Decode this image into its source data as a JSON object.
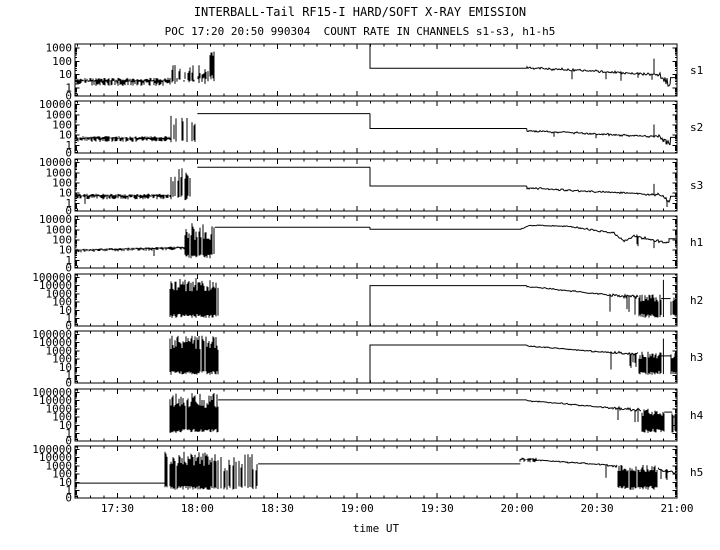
{
  "title": "INTERBALL-Tail RF15-I HARD/SOFT X-RAY EMISSION",
  "subtitle": "POC 17:20 20:50 990304  COUNT RATE IN CHANNELS s1-s3, h1-h5",
  "xlabel": "time UT",
  "colors": {
    "background": "#ffffff",
    "foreground": "#000000"
  },
  "chart_data": {
    "type": "line",
    "title": "INTERBALL-Tail RF15-I HARD/SOFT X-RAY EMISSION",
    "subtitle": "POC 17:20 20:50 990304  COUNT RATE IN CHANNELS s1-s3, h1-h5",
    "xlabel": "time UT",
    "x_axis": {
      "range_hours": [
        17.235,
        21.0
      ],
      "major_tick_hours": [
        17.5,
        18.0,
        18.5,
        19.0,
        19.5,
        20.0,
        20.5,
        21.0
      ],
      "major_tick_labels": [
        "17:30",
        "18:00",
        "18:30",
        "19:00",
        "19:30",
        "20:00",
        "20:30",
        "21:00"
      ],
      "minor_tick_minutes": 5
    },
    "y_axis": {
      "scale": "log",
      "bottom_edge_label": "0"
    },
    "panels": [
      {
        "name": "s1",
        "top_exp": 3.3,
        "bot_exp": -0.6,
        "y_tick_labels": [
          "1000",
          "100",
          "10",
          "1",
          "0"
        ],
        "segments": [
          {
            "type": "noise",
            "t0": 17.235,
            "t1": 17.83,
            "base": 3.5,
            "spread": 0.22,
            "dip_p": 0.02,
            "dip_depth": 0.8
          },
          {
            "type": "spikes",
            "t0": 17.83,
            "t1": 18.07,
            "vmin": 2,
            "vmax": 60,
            "density": 0.5,
            "hivar": 1.2
          },
          {
            "type": "spikes",
            "t0": 18.07,
            "t1": 18.12,
            "vmin": 3,
            "vmax": 2500,
            "density": 0.7,
            "hivar": 1.1
          },
          {
            "type": "flat",
            "t0": 18.12,
            "t1": 19.08,
            "v": 3200,
            "join": false
          },
          {
            "type": "flat",
            "t0": 19.08,
            "t1": 20.06,
            "v": 30
          },
          {
            "type": "ramp",
            "t0": 20.06,
            "t1": 20.88,
            "v0": 34,
            "v1": 10,
            "noise": 0.12,
            "ds_p": 0.02,
            "ds_depth": 0.7,
            "spikes_up": [
              [
                20.85,
                160
              ]
            ]
          },
          {
            "type": "ramp",
            "t0": 20.88,
            "t1": 20.96,
            "v0": 9,
            "v1": 2,
            "noise": 0.3,
            "ds_p": 0.15,
            "ds_depth": 0.6
          },
          {
            "type": "flat",
            "t0": 20.96,
            "t1": 21.0,
            "v": 6
          }
        ]
      },
      {
        "name": "s2",
        "top_exp": 4.35,
        "bot_exp": -0.75,
        "y_tick_labels": [
          "10000",
          "1000",
          "100",
          "10",
          "1",
          "0"
        ],
        "segments": [
          {
            "type": "noise",
            "t0": 17.235,
            "t1": 17.83,
            "base": 5,
            "spread": 0.2,
            "dip_p": 0.02,
            "dip_depth": 0.7
          },
          {
            "type": "spikes",
            "t0": 17.83,
            "t1": 17.99,
            "vmin": 2,
            "vmax": 1100,
            "density": 0.4,
            "hivar": 1.4
          },
          {
            "type": "flat",
            "t0": 18.0,
            "t1": 19.08,
            "v": 1300,
            "join": false
          },
          {
            "type": "flat",
            "t0": 19.08,
            "t1": 20.06,
            "v": 45
          },
          {
            "type": "ramp",
            "t0": 20.06,
            "t1": 20.88,
            "v0": 28,
            "v1": 7,
            "noise": 0.12,
            "ds_p": 0.02,
            "ds_depth": 0.7,
            "spikes_up": [
              [
                20.85,
                110
              ]
            ]
          },
          {
            "type": "ramp",
            "t0": 20.88,
            "t1": 20.96,
            "v0": 7,
            "v1": 1.6,
            "noise": 0.3,
            "ds_p": 0.15,
            "ds_depth": 0.6
          },
          {
            "type": "flat",
            "t0": 20.96,
            "t1": 21.0,
            "v": 6
          }
        ]
      },
      {
        "name": "s3",
        "top_exp": 4.35,
        "bot_exp": -0.75,
        "y_tick_labels": [
          "10000",
          "1000",
          "100",
          "10",
          "1",
          "0"
        ],
        "segments": [
          {
            "type": "noise",
            "t0": 17.235,
            "t1": 17.83,
            "base": 5.5,
            "spread": 0.2,
            "dip_p": 0.02,
            "dip_depth": 0.7
          },
          {
            "type": "spikes",
            "t0": 17.83,
            "t1": 17.99,
            "vmin": 2,
            "vmax": 3500,
            "density": 0.45,
            "hivar": 1.4
          },
          {
            "type": "flat",
            "t0": 18.0,
            "t1": 19.08,
            "v": 3500,
            "join": false
          },
          {
            "type": "flat",
            "t0": 19.08,
            "t1": 20.06,
            "v": 50
          },
          {
            "type": "ramp",
            "t0": 20.06,
            "t1": 20.88,
            "v0": 32,
            "v1": 7,
            "noise": 0.12,
            "ds_p": 0.02,
            "ds_depth": 0.7,
            "spikes_up": [
              [
                20.85,
                80
              ]
            ]
          },
          {
            "type": "ramp",
            "t0": 20.88,
            "t1": 20.96,
            "v0": 7,
            "v1": 1.6,
            "noise": 0.3,
            "ds_p": 0.15,
            "ds_depth": 0.6
          },
          {
            "type": "flat",
            "t0": 20.96,
            "t1": 21.0,
            "v": 5
          }
        ]
      },
      {
        "name": "h1",
        "top_exp": 4.35,
        "bot_exp": -0.75,
        "y_tick_labels": [
          "10000",
          "1000",
          "100",
          "10",
          "1",
          "0"
        ],
        "segments": [
          {
            "type": "noise",
            "t0": 17.235,
            "t1": 17.92,
            "base": 10,
            "base_end": 18,
            "spread": 0.13,
            "dip_p": 0.015,
            "dip_depth": 0.6
          },
          {
            "type": "spikes",
            "t0": 17.92,
            "t1": 18.11,
            "vmin": 1.5,
            "vmax": 4500,
            "density": 0.85,
            "hivar": 1.7
          },
          {
            "type": "flat",
            "t0": 18.11,
            "t1": 19.08,
            "v": 1800,
            "join": false
          },
          {
            "type": "flat",
            "t0": 19.08,
            "t1": 20.02,
            "v": 1100
          },
          {
            "type": "ramp",
            "t0": 20.02,
            "t1": 20.08,
            "v0": 1100,
            "v1": 2800,
            "noise": 0.04
          },
          {
            "type": "ramp",
            "t0": 20.08,
            "t1": 20.33,
            "v0": 2800,
            "v1": 2200,
            "noise": 0.06
          },
          {
            "type": "ramp",
            "t0": 20.33,
            "t1": 20.6,
            "v0": 2000,
            "v1": 500,
            "noise": 0.1
          },
          {
            "type": "ramp",
            "t0": 20.6,
            "t1": 20.67,
            "v0": 500,
            "v1": 70,
            "noise": 0.15
          },
          {
            "type": "ramp",
            "t0": 20.67,
            "t1": 20.73,
            "v0": 70,
            "v1": 250,
            "noise": 0.12
          },
          {
            "type": "ramp",
            "t0": 20.73,
            "t1": 20.95,
            "v0": 250,
            "v1": 50,
            "noise": 0.18,
            "ds_p": 0.08,
            "ds_depth": 1.2
          },
          {
            "type": "flat",
            "t0": 20.95,
            "t1": 21.0,
            "v": 130
          }
        ]
      },
      {
        "name": "h2",
        "top_exp": 5.4,
        "bot_exp": -0.9,
        "y_tick_labels": [
          "100000",
          "10000",
          "1000",
          "100",
          "10",
          "1",
          "0"
        ],
        "segments": [
          {
            "type": "flat",
            "t0": 17.235,
            "t1": 17.83,
            "v": 0.05,
            "join": false
          },
          {
            "type": "spikes",
            "t0": 17.83,
            "t1": 18.13,
            "vmin": 1.2,
            "vmax": 80000,
            "density": 0.92,
            "hivar": 1.8
          },
          {
            "type": "flat",
            "t0": 18.13,
            "t1": 19.08,
            "v": 0.05,
            "join": false
          },
          {
            "type": "flat",
            "t0": 19.08,
            "t1": 20.06,
            "v": 10000
          },
          {
            "type": "ramp",
            "t0": 20.06,
            "t1": 20.58,
            "v0": 8000,
            "v1": 700,
            "noise": 0.09
          },
          {
            "type": "ramp",
            "t0": 20.58,
            "t1": 20.76,
            "v0": 700,
            "v1": 450,
            "noise": 0.22,
            "ds_p": 0.1,
            "ds_depth": 2.5
          },
          {
            "type": "spikes",
            "t0": 20.76,
            "t1": 20.9,
            "vmin": 1.2,
            "vmax": 900,
            "density": 0.95,
            "hivar": 0.9
          },
          {
            "type": "vspike",
            "t": 20.915,
            "v0": 1.5,
            "v1": 50000
          },
          {
            "type": "flat",
            "t0": 20.9,
            "t1": 20.96,
            "v": 260,
            "join": false
          },
          {
            "type": "spikes",
            "t0": 20.96,
            "t1": 21.0,
            "vmin": 1.2,
            "vmax": 700,
            "density": 0.9,
            "hivar": 0.8
          }
        ]
      },
      {
        "name": "h3",
        "top_exp": 5.4,
        "bot_exp": -0.9,
        "y_tick_labels": [
          "100000",
          "10000",
          "1000",
          "100",
          "10",
          "1",
          "0"
        ],
        "segments": [
          {
            "type": "flat",
            "t0": 17.235,
            "t1": 17.83,
            "v": 0.05,
            "join": false
          },
          {
            "type": "spikes",
            "t0": 17.83,
            "t1": 18.13,
            "vmin": 1.2,
            "vmax": 80000,
            "density": 0.92,
            "hivar": 1.8
          },
          {
            "type": "flat",
            "t0": 18.13,
            "t1": 19.08,
            "v": 0.05,
            "join": false
          },
          {
            "type": "flat",
            "t0": 19.08,
            "t1": 20.06,
            "v": 5000
          },
          {
            "type": "ramp",
            "t0": 20.06,
            "t1": 20.58,
            "v0": 4000,
            "v1": 600,
            "noise": 0.09
          },
          {
            "type": "ramp",
            "t0": 20.58,
            "t1": 20.76,
            "v0": 600,
            "v1": 380,
            "noise": 0.22,
            "ds_p": 0.1,
            "ds_depth": 2.5
          },
          {
            "type": "spikes",
            "t0": 20.76,
            "t1": 20.9,
            "vmin": 1.2,
            "vmax": 800,
            "density": 0.95,
            "hivar": 0.9
          },
          {
            "type": "vspike",
            "t": 20.915,
            "v0": 1.5,
            "v1": 30000
          },
          {
            "type": "flat",
            "t0": 20.9,
            "t1": 20.96,
            "v": 240,
            "join": false
          },
          {
            "type": "spikes",
            "t0": 20.96,
            "t1": 21.0,
            "vmin": 1.2,
            "vmax": 600,
            "density": 0.9,
            "hivar": 0.8
          }
        ]
      },
      {
        "name": "h4",
        "top_exp": 5.4,
        "bot_exp": -0.9,
        "y_tick_labels": [
          "100000",
          "10000",
          "1000",
          "100",
          "10",
          "1",
          "0"
        ],
        "segments": [
          {
            "type": "flat",
            "t0": 17.235,
            "t1": 17.83,
            "v": 0.05,
            "join": false
          },
          {
            "type": "spikes",
            "t0": 17.83,
            "t1": 18.13,
            "vmin": 1.2,
            "vmax": 80000,
            "density": 0.92,
            "hivar": 1.8
          },
          {
            "type": "flat",
            "t0": 18.13,
            "t1": 20.06,
            "v": 12000,
            "join": false
          },
          {
            "type": "ramp",
            "t0": 20.06,
            "t1": 20.6,
            "v0": 10000,
            "v1": 1200,
            "noise": 0.09
          },
          {
            "type": "ramp",
            "t0": 20.6,
            "t1": 20.78,
            "v0": 1200,
            "v1": 700,
            "noise": 0.22,
            "ds_p": 0.1,
            "ds_depth": 2.5
          },
          {
            "type": "spikes",
            "t0": 20.78,
            "t1": 20.92,
            "vmin": 1.2,
            "vmax": 1000,
            "density": 0.95,
            "hivar": 0.9
          },
          {
            "type": "flat",
            "t0": 20.92,
            "t1": 20.97,
            "v": 400,
            "join": false
          },
          {
            "type": "spikes",
            "t0": 20.97,
            "t1": 21.0,
            "vmin": 1.2,
            "vmax": 1000,
            "density": 0.9,
            "hivar": 0.8
          }
        ]
      },
      {
        "name": "h5",
        "top_exp": 5.4,
        "bot_exp": -0.9,
        "y_tick_labels": [
          "100000",
          "10000",
          "1000",
          "100",
          "10",
          "1",
          "0"
        ],
        "segments": [
          {
            "type": "flat",
            "t0": 17.235,
            "t1": 17.8,
            "v": 8,
            "join": false
          },
          {
            "type": "spikes",
            "t0": 17.8,
            "t1": 18.13,
            "vmin": 1.2,
            "vmax": 50000,
            "density": 0.92,
            "hivar": 1.8
          },
          {
            "type": "spikes",
            "t0": 18.13,
            "t1": 18.38,
            "vmin": 1.2,
            "vmax": 30000,
            "density": 0.5,
            "hivar": 2.2
          },
          {
            "type": "flat",
            "t0": 18.38,
            "t1": 20.02,
            "v": 1700,
            "join": false
          },
          {
            "type": "noise",
            "t0": 20.02,
            "t1": 20.12,
            "base": 6000,
            "spread": 0.2
          },
          {
            "type": "ramp",
            "t0": 20.12,
            "t1": 20.55,
            "v0": 5000,
            "v1": 1300,
            "noise": 0.1,
            "join": false
          },
          {
            "type": "ramp",
            "t0": 20.55,
            "t1": 20.63,
            "v0": 1300,
            "v1": 800,
            "noise": 0.2,
            "ds_p": 0.1,
            "ds_depth": 2
          },
          {
            "type": "spikes",
            "t0": 20.63,
            "t1": 20.88,
            "vmin": 1.2,
            "vmax": 1300,
            "density": 0.92,
            "hivar": 0.9
          },
          {
            "type": "ramp",
            "t0": 20.88,
            "t1": 21.0,
            "v0": 400,
            "v1": 130,
            "noise": 0.25,
            "ds_p": 0.12,
            "ds_depth": 2,
            "join": false
          }
        ]
      }
    ]
  }
}
